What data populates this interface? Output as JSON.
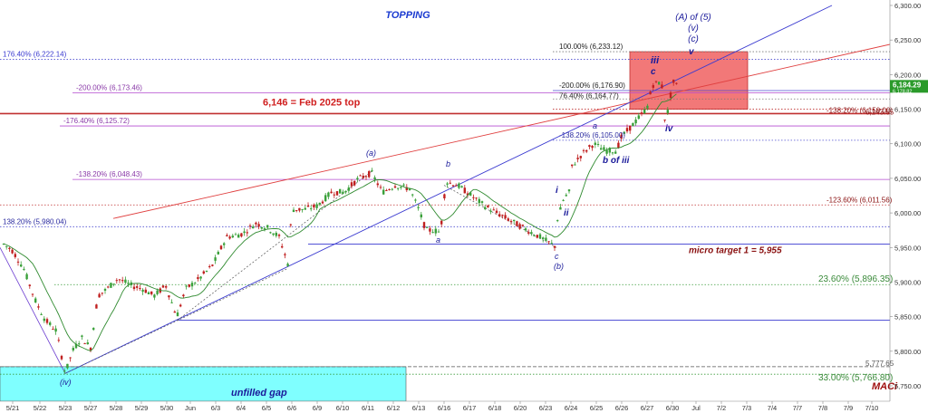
{
  "chart_data": {
    "type": "candlestick",
    "title": "TOPPING",
    "wave_label": [
      "(A) of (5)",
      "(v)",
      "(c)"
    ],
    "ylim": [
      5740,
      6300
    ],
    "y_ticks": [
      "6,300.00",
      "6,250.00",
      "6,200.00",
      "6,150.00",
      "6,100.00",
      "6,050.00",
      "6,000.00",
      "5,950.00",
      "5,900.00",
      "5,850.00",
      "5,800.00",
      "5,750.00"
    ],
    "x_ticks": [
      "5/21",
      "5/22",
      "5/23",
      "5/27",
      "5/28",
      "5/29",
      "5/30",
      "Jun",
      "6/3",
      "6/4",
      "6/5",
      "6/6",
      "6/9",
      "6/10",
      "6/11",
      "6/12",
      "6/13",
      "6/16",
      "6/17",
      "6/18",
      "6/20",
      "6/23",
      "6/24",
      "6/25",
      "6/26",
      "6/27",
      "6/30",
      "Jul",
      "7/2",
      "7/3",
      "7/4",
      "7/7",
      "7/8",
      "7/9",
      "7/10"
    ],
    "last_price": {
      "value": 6184.29,
      "label": "6,184.29",
      "sub_label": "6,178.82"
    },
    "levels": [
      {
        "label": "176.40% (6,222.14)",
        "value": 6222.14,
        "color": "#4b4bd0"
      },
      {
        "label": "100.00% (6,233.12)",
        "value": 6233.12,
        "color": "#777777"
      },
      {
        "label": "-200.00% (6,173.46)",
        "value": 6173.46,
        "color": "#b44bd0"
      },
      {
        "label": "-200.00% (6,176.90)",
        "value": 6176.9,
        "color": "#4b4bd0"
      },
      {
        "label": "76.40% (6,164.77)",
        "value": 6164.77,
        "color": "#777777"
      },
      {
        "label": "-138.20% (6,150.00)",
        "value": 6150.0,
        "color": "#c03030"
      },
      {
        "label": "6,143.65",
        "value": 6143.65,
        "color": "#c03030"
      },
      {
        "label": "-176.40% (6,125.72)",
        "value": 6125.72,
        "color": "#b44bd0"
      },
      {
        "label": "-138.20% (6,105.00)",
        "value": 6105.0,
        "color": "#4b4bd0"
      },
      {
        "label": "-138.20% (6,048.43)",
        "value": 6048.43,
        "color": "#b44bd0"
      },
      {
        "label": "-123.60% (6,011.56)",
        "value": 6011.56,
        "color": "#c03030"
      },
      {
        "label": "138.20% (5,980.04)",
        "value": 5980.04,
        "color": "#4b4bd0"
      },
      {
        "label": "23.60% (5,896.35)",
        "value": 5896.35,
        "color": "#3a9a3a"
      },
      {
        "label": "5,777.65",
        "value": 5777.65,
        "color": "#555555"
      },
      {
        "label": "33.00% (5,766.80)",
        "value": 5766.8,
        "color": "#3a9a3a"
      }
    ],
    "annotations": {
      "feb_top": "6,146 = Feb 2025 top",
      "micro_target": "micro target 1 = 5,955",
      "unfilled_gap": "unfilled gap",
      "maci": "MACi",
      "wave_iii": "iii",
      "wave_c": "c",
      "wave_v": "v",
      "wave_iv": "iv",
      "wave_a": "a",
      "wave_b_of_iii": "b of iii",
      "wave_i": "i",
      "wave_ii": "ii",
      "wave_a_paren": "(a)",
      "wave_b": "b",
      "wave_a_low": "a",
      "wave_c_low": "c",
      "wave_b_paren": "(b)",
      "wave_iv_paren": "(iv)"
    },
    "colors": {
      "up": "#3aa03a",
      "down": "#c02020",
      "box_fill": "#f06060",
      "gap_fill": "#7fffff",
      "ma": "#2f8a2f",
      "price_tag": "#2a9a2a"
    }
  }
}
